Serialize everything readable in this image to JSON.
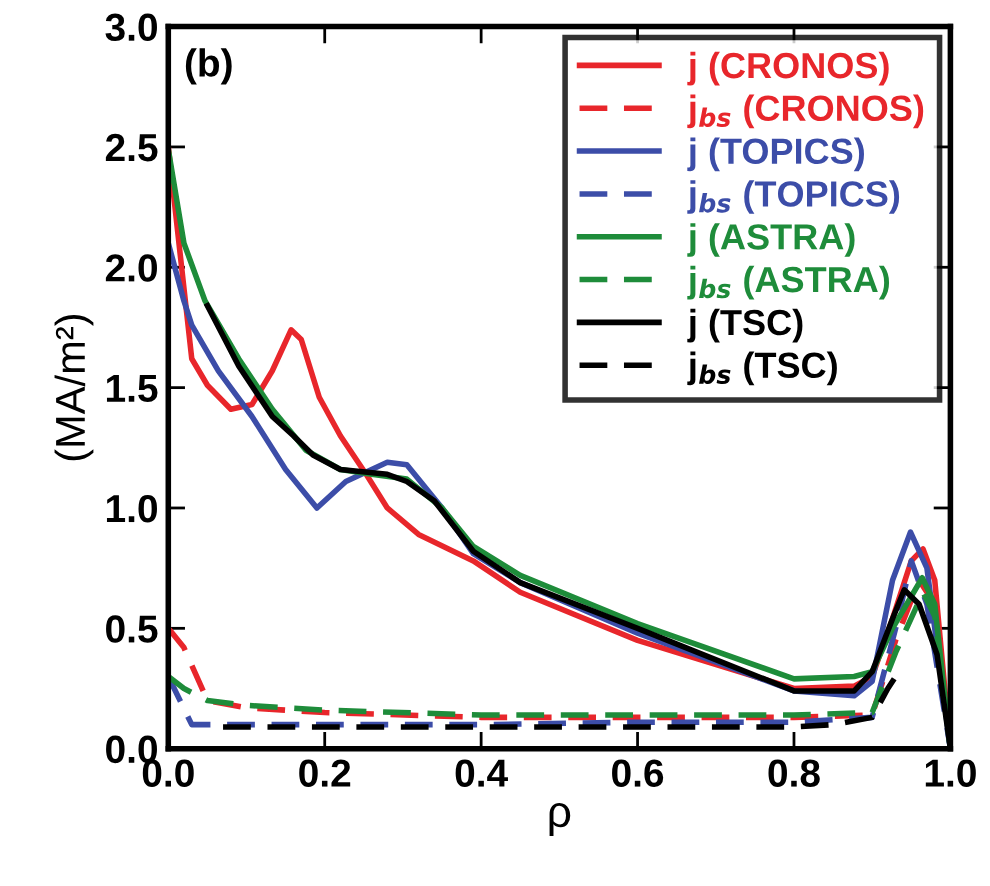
{
  "chart_data": {
    "type": "line",
    "xlabel": "ρ",
    "ylabel": "(MA/m²)",
    "annotations": [
      "(b)"
    ],
    "xlim": [
      0,
      1
    ],
    "ylim": [
      0,
      3
    ],
    "xticks": [
      {
        "value": 0,
        "label": "0.0"
      },
      {
        "value": 0.2,
        "label": "0.2"
      },
      {
        "value": 0.4,
        "label": "0.4"
      },
      {
        "value": 0.6,
        "label": "0.6"
      },
      {
        "value": 0.8,
        "label": "0.8"
      },
      {
        "value": 1,
        "label": "1.0"
      }
    ],
    "yticks": [
      {
        "value": 0,
        "label": "0.0"
      },
      {
        "value": 0.5,
        "label": "0.5"
      },
      {
        "value": 1,
        "label": "1.0"
      },
      {
        "value": 1.5,
        "label": "1.5"
      },
      {
        "value": 2,
        "label": "2.0"
      },
      {
        "value": 2.5,
        "label": "2.5"
      },
      {
        "value": 3,
        "label": "3.0"
      }
    ],
    "legend": "top right",
    "grid": false,
    "marker": "none",
    "series": [
      {
        "name": "j (CRONOS)",
        "color": "#e8262b",
        "line_style": "solid",
        "x": [
          0,
          0.03,
          0.05,
          0.08,
          0.107,
          0.133,
          0.157,
          0.17,
          0.193,
          0.22,
          0.253,
          0.28,
          0.32,
          0.39,
          0.45,
          0.6,
          0.8,
          0.877,
          0.9,
          0.926,
          0.95,
          0.965,
          0.98,
          1.0
        ],
        "values": [
          2.5,
          1.62,
          1.51,
          1.41,
          1.43,
          1.57,
          1.74,
          1.7,
          1.46,
          1.3,
          1.14,
          1.0,
          0.89,
          0.78,
          0.65,
          0.45,
          0.25,
          0.26,
          0.3,
          0.54,
          0.78,
          0.83,
          0.7,
          0.0
        ]
      },
      {
        "name": "j$_{bs}$ (CRONOS)",
        "color": "#e8262b",
        "line_style": "dashed",
        "x": [
          0,
          0.02,
          0.05,
          0.1,
          0.2,
          0.4,
          0.6,
          0.8,
          0.9,
          0.93,
          0.96,
          0.98,
          1.0
        ],
        "values": [
          0.5,
          0.42,
          0.2,
          0.17,
          0.15,
          0.13,
          0.13,
          0.13,
          0.14,
          0.45,
          0.7,
          0.6,
          0.0
        ]
      },
      {
        "name": "j (TOPICS)",
        "color": "#3c4da8",
        "line_style": "solid",
        "x": [
          0,
          0.02,
          0.03,
          0.064,
          0.107,
          0.15,
          0.19,
          0.227,
          0.28,
          0.305,
          0.35,
          0.39,
          0.45,
          0.6,
          0.8,
          0.877,
          0.9,
          0.926,
          0.949,
          0.97,
          1.0
        ],
        "values": [
          2.1,
          1.86,
          1.76,
          1.57,
          1.38,
          1.16,
          1.0,
          1.11,
          1.19,
          1.18,
          1.0,
          0.81,
          0.69,
          0.48,
          0.24,
          0.22,
          0.28,
          0.7,
          0.9,
          0.75,
          0.0
        ]
      },
      {
        "name": "j$_{bs}$ (TOPICS)",
        "color": "#3c4da8",
        "line_style": "dashed",
        "x": [
          0,
          0.015,
          0.03,
          0.1,
          0.4,
          0.6,
          0.8,
          0.9,
          0.93,
          0.95,
          0.97,
          1.0
        ],
        "values": [
          0.3,
          0.2,
          0.1,
          0.1,
          0.1,
          0.11,
          0.11,
          0.13,
          0.5,
          0.78,
          0.6,
          0.0
        ]
      },
      {
        "name": "j (ASTRA)",
        "color": "#1e8c3a",
        "line_style": "solid",
        "x": [
          0,
          0.02,
          0.047,
          0.09,
          0.133,
          0.176,
          0.22,
          0.26,
          0.305,
          0.35,
          0.39,
          0.45,
          0.6,
          0.8,
          0.877,
          0.9,
          0.926,
          0.964,
          0.98,
          1.0
        ],
        "values": [
          2.49,
          2.1,
          1.86,
          1.62,
          1.41,
          1.24,
          1.16,
          1.14,
          1.12,
          1.0,
          0.84,
          0.72,
          0.52,
          0.29,
          0.3,
          0.32,
          0.5,
          0.71,
          0.6,
          0.0
        ]
      },
      {
        "name": "j$_{bs}$ (ASTRA)",
        "color": "#1e8c3a",
        "line_style": "dashed",
        "x": [
          0,
          0.02,
          0.05,
          0.1,
          0.2,
          0.4,
          0.6,
          0.8,
          0.9,
          0.93,
          0.965,
          0.98,
          1.0
        ],
        "values": [
          0.3,
          0.25,
          0.2,
          0.18,
          0.16,
          0.14,
          0.14,
          0.14,
          0.15,
          0.4,
          0.65,
          0.55,
          0.0
        ]
      },
      {
        "name": "j (TSC)",
        "color": "#000000",
        "line_style": "solid",
        "x": [
          0.05,
          0.09,
          0.133,
          0.16,
          0.185,
          0.22,
          0.28,
          0.305,
          0.34,
          0.39,
          0.45,
          0.6,
          0.8,
          0.877,
          0.9,
          0.926,
          0.941,
          0.96,
          0.983,
          1.0
        ],
        "values": [
          1.84,
          1.59,
          1.38,
          1.3,
          1.22,
          1.16,
          1.14,
          1.11,
          1.03,
          0.82,
          0.69,
          0.5,
          0.24,
          0.24,
          0.32,
          0.54,
          0.66,
          0.6,
          0.39,
          0.0
        ]
      },
      {
        "name": "j$_{bs}$ (TSC)",
        "color": "#000000",
        "line_style": "dashed",
        "x": [
          0.07,
          0.2,
          0.4,
          0.6,
          0.8,
          0.85,
          0.9,
          0.92,
          0.93
        ],
        "values": [
          0.09,
          0.09,
          0.09,
          0.09,
          0.09,
          0.1,
          0.13,
          0.25,
          0.3
        ]
      }
    ]
  }
}
